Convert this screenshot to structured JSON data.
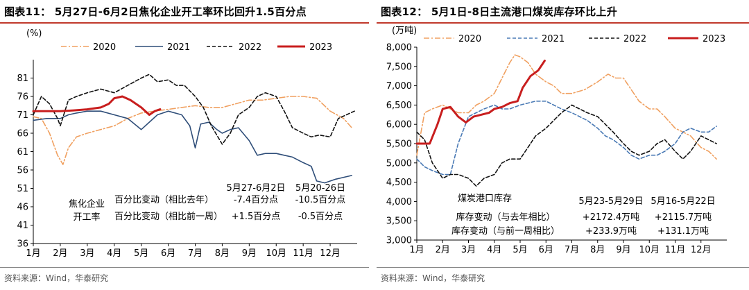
{
  "chart_data": [
    {
      "type": "line",
      "title": "图表11： 5月27日-6月2日焦化企业开工率环比回升1.5百分点",
      "unit": "(%)",
      "ylim": [
        36,
        86
      ],
      "yticks": [
        36,
        41,
        46,
        51,
        56,
        61,
        66,
        71,
        76,
        81
      ],
      "categories": [
        "1月",
        "2月",
        "3月",
        "4月",
        "5月",
        "6月",
        "7月",
        "8月",
        "9月",
        "10月",
        "11月",
        "12月"
      ],
      "series": [
        {
          "name": "2020",
          "color": "#f0a060",
          "style": "dashdot",
          "width": 1.6,
          "points": [
            [
              1,
              70.5
            ],
            [
              1.3,
              70
            ],
            [
              1.6,
              66
            ],
            [
              1.9,
              60
            ],
            [
              2.1,
              57.5
            ],
            [
              2.3,
              62
            ],
            [
              2.6,
              65
            ],
            [
              3,
              66
            ],
            [
              3.5,
              67
            ],
            [
              4,
              68
            ],
            [
              4.5,
              70
            ],
            [
              5,
              71.5
            ],
            [
              5.5,
              72
            ],
            [
              6,
              72.5
            ],
            [
              6.5,
              73
            ],
            [
              7,
              73.5
            ],
            [
              7.5,
              73
            ],
            [
              8,
              73
            ],
            [
              8.5,
              74
            ],
            [
              9,
              75
            ],
            [
              9.5,
              75
            ],
            [
              10,
              75.5
            ],
            [
              10.5,
              76
            ],
            [
              11,
              76
            ],
            [
              11.5,
              75.5
            ],
            [
              12,
              72
            ],
            [
              12.5,
              70
            ],
            [
              12.8,
              67.5
            ]
          ]
        },
        {
          "name": "2021",
          "color": "#2f4e79",
          "style": "solid",
          "width": 1.6,
          "points": [
            [
              1,
              69.5
            ],
            [
              1.5,
              70
            ],
            [
              2,
              70
            ],
            [
              2.3,
              71
            ],
            [
              2.6,
              71.5
            ],
            [
              3,
              72
            ],
            [
              3.5,
              72
            ],
            [
              4,
              71
            ],
            [
              4.5,
              70
            ],
            [
              5,
              67
            ],
            [
              5.3,
              69
            ],
            [
              5.6,
              71
            ],
            [
              6,
              72
            ],
            [
              6.5,
              71
            ],
            [
              6.8,
              68
            ],
            [
              7,
              62
            ],
            [
              7.2,
              68.5
            ],
            [
              7.5,
              69
            ],
            [
              7.8,
              67
            ],
            [
              8,
              66
            ],
            [
              8.3,
              67
            ],
            [
              8.6,
              67.5
            ],
            [
              9,
              64
            ],
            [
              9.3,
              60
            ],
            [
              9.6,
              60.5
            ],
            [
              10,
              60.5
            ],
            [
              10.3,
              60
            ],
            [
              10.6,
              59.5
            ],
            [
              11,
              58
            ],
            [
              11.3,
              57
            ],
            [
              11.5,
              53
            ],
            [
              11.8,
              52.5
            ],
            [
              12.2,
              53.5
            ],
            [
              12.5,
              54
            ],
            [
              12.8,
              54.5
            ]
          ]
        },
        {
          "name": "2022",
          "color": "#111111",
          "style": "dashed",
          "width": 1.6,
          "points": [
            [
              1,
              71
            ],
            [
              1.3,
              76
            ],
            [
              1.6,
              74
            ],
            [
              1.9,
              70
            ],
            [
              2,
              68
            ],
            [
              2.3,
              75
            ],
            [
              2.6,
              76
            ],
            [
              3,
              77
            ],
            [
              3.5,
              78
            ],
            [
              4,
              77
            ],
            [
              4.5,
              79
            ],
            [
              5,
              81
            ],
            [
              5.3,
              82
            ],
            [
              5.6,
              80
            ],
            [
              6,
              80.5
            ],
            [
              6.3,
              79
            ],
            [
              6.6,
              79
            ],
            [
              7,
              76
            ],
            [
              7.3,
              73
            ],
            [
              7.6,
              68
            ],
            [
              8,
              63
            ],
            [
              8.3,
              66
            ],
            [
              8.6,
              71
            ],
            [
              9,
              73
            ],
            [
              9.3,
              76
            ],
            [
              9.6,
              77
            ],
            [
              10,
              76
            ],
            [
              10.3,
              72
            ],
            [
              10.6,
              67.5
            ],
            [
              11,
              66
            ],
            [
              11.3,
              65
            ],
            [
              11.6,
              65.5
            ],
            [
              12,
              65
            ],
            [
              12.3,
              70
            ],
            [
              12.6,
              71
            ],
            [
              12.9,
              72
            ]
          ]
        },
        {
          "name": "2023",
          "color": "#c81e1e",
          "style": "solid",
          "width": 3,
          "points": [
            [
              1,
              72
            ],
            [
              1.5,
              72
            ],
            [
              2,
              72
            ],
            [
              2.5,
              72.2
            ],
            [
              3,
              72.5
            ],
            [
              3.5,
              73
            ],
            [
              3.8,
              74
            ],
            [
              4,
              75.5
            ],
            [
              4.3,
              76
            ],
            [
              4.6,
              75
            ],
            [
              5,
              73
            ],
            [
              5.3,
              71
            ],
            [
              5.5,
              72
            ],
            [
              5.7,
              72.5
            ]
          ]
        }
      ],
      "legend": [
        "2020",
        "2021",
        "2022",
        "2023"
      ],
      "annotations": {
        "row_label_1": "焦化企业",
        "row_label_2": "开工率",
        "col_a": "5月27-6月2日",
        "col_b": "5月20-26日",
        "metric_1": "百分比变动（相比去年）",
        "metric_2": "百分比变动（相比前一周）",
        "a1": "-7.4百分点",
        "a2": "+1.5百分点",
        "b1": "-10.5百分点",
        "b2": "-0.5百分点"
      },
      "source": "资料来源：Wind，华泰研究"
    },
    {
      "type": "line",
      "title": "图表12： 5月1日-8日主流港口煤炭库存环比上升",
      "unit": "(万吨)",
      "ylim": [
        3000,
        8000
      ],
      "yticks": [
        3000,
        3500,
        4000,
        4500,
        5000,
        5500,
        6000,
        6500,
        7000,
        7500,
        8000
      ],
      "categories": [
        "1月",
        "2月",
        "3月",
        "4月",
        "5月",
        "6月",
        "7月",
        "8月",
        "9月",
        "10月",
        "11月",
        "12月"
      ],
      "series": [
        {
          "name": "2020",
          "color": "#f0a060",
          "style": "dashdot",
          "width": 1.6,
          "points": [
            [
              1,
              5200
            ],
            [
              1.3,
              6300
            ],
            [
              1.6,
              6400
            ],
            [
              2,
              6500
            ],
            [
              2.3,
              6400
            ],
            [
              2.6,
              6300
            ],
            [
              3,
              6300
            ],
            [
              3.3,
              6500
            ],
            [
              3.6,
              6600
            ],
            [
              4,
              6800
            ],
            [
              4.3,
              7200
            ],
            [
              4.6,
              7600
            ],
            [
              4.8,
              7800
            ],
            [
              5,
              7750
            ],
            [
              5.3,
              7600
            ],
            [
              5.6,
              7300
            ],
            [
              6,
              7100
            ],
            [
              6.3,
              7000
            ],
            [
              6.6,
              6800
            ],
            [
              7,
              6800
            ],
            [
              7.5,
              6900
            ],
            [
              8,
              7100
            ],
            [
              8.4,
              7300
            ],
            [
              8.7,
              7200
            ],
            [
              9,
              7200
            ],
            [
              9.3,
              6900
            ],
            [
              9.6,
              6600
            ],
            [
              10,
              6400
            ],
            [
              10.3,
              6400
            ],
            [
              10.6,
              6200
            ],
            [
              11,
              5900
            ],
            [
              11.3,
              5800
            ],
            [
              11.6,
              5700
            ],
            [
              12,
              5400
            ],
            [
              12.3,
              5300
            ],
            [
              12.6,
              5100
            ]
          ]
        },
        {
          "name": "2021",
          "color": "#4a7ab5",
          "style": "dashed",
          "width": 1.6,
          "points": [
            [
              1,
              5100
            ],
            [
              1.3,
              4900
            ],
            [
              1.6,
              4800
            ],
            [
              2,
              4700
            ],
            [
              2.3,
              4700
            ],
            [
              2.6,
              5500
            ],
            [
              3,
              6200
            ],
            [
              3.3,
              6300
            ],
            [
              3.6,
              6400
            ],
            [
              4,
              6500
            ],
            [
              4.3,
              6400
            ],
            [
              4.6,
              6400
            ],
            [
              5,
              6500
            ],
            [
              5.3,
              6550
            ],
            [
              5.6,
              6600
            ],
            [
              6,
              6600
            ],
            [
              6.3,
              6500
            ],
            [
              6.6,
              6400
            ],
            [
              7,
              6300
            ],
            [
              7.3,
              6200
            ],
            [
              7.6,
              6100
            ],
            [
              8,
              5900
            ],
            [
              8.3,
              5700
            ],
            [
              8.6,
              5600
            ],
            [
              9,
              5400
            ],
            [
              9.3,
              5200
            ],
            [
              9.6,
              5100
            ],
            [
              10,
              5200
            ],
            [
              10.3,
              5200
            ],
            [
              10.6,
              5300
            ],
            [
              11,
              5500
            ],
            [
              11.3,
              5800
            ],
            [
              11.6,
              5900
            ],
            [
              12,
              5800
            ],
            [
              12.3,
              5800
            ],
            [
              12.6,
              5950
            ]
          ]
        },
        {
          "name": "2022",
          "color": "#111111",
          "style": "dashed",
          "width": 1.6,
          "points": [
            [
              1,
              5800
            ],
            [
              1.3,
              5600
            ],
            [
              1.6,
              5000
            ],
            [
              2,
              4600
            ],
            [
              2.3,
              4700
            ],
            [
              2.6,
              4700
            ],
            [
              3,
              4600
            ],
            [
              3.3,
              4400
            ],
            [
              3.6,
              4600
            ],
            [
              4,
              4700
            ],
            [
              4.3,
              5000
            ],
            [
              4.6,
              5100
            ],
            [
              5,
              5100
            ],
            [
              5.3,
              5400
            ],
            [
              5.6,
              5700
            ],
            [
              6,
              5900
            ],
            [
              6.3,
              6100
            ],
            [
              6.6,
              6300
            ],
            [
              7,
              6500
            ],
            [
              7.3,
              6400
            ],
            [
              7.6,
              6300
            ],
            [
              8,
              6200
            ],
            [
              8.3,
              6000
            ],
            [
              8.6,
              5800
            ],
            [
              9,
              5500
            ],
            [
              9.3,
              5300
            ],
            [
              9.6,
              5200
            ],
            [
              10,
              5300
            ],
            [
              10.3,
              5500
            ],
            [
              10.6,
              5600
            ],
            [
              11,
              5300
            ],
            [
              11.3,
              5100
            ],
            [
              11.6,
              5300
            ],
            [
              12,
              5700
            ],
            [
              12.3,
              5600
            ],
            [
              12.6,
              5500
            ]
          ]
        },
        {
          "name": "2023",
          "color": "#c81e1e",
          "style": "solid",
          "width": 3,
          "points": [
            [
              1,
              5500
            ],
            [
              1.5,
              5500
            ],
            [
              1.8,
              6000
            ],
            [
              2,
              6400
            ],
            [
              2.3,
              6450
            ],
            [
              2.6,
              6200
            ],
            [
              2.9,
              6050
            ],
            [
              3.2,
              6200
            ],
            [
              3.5,
              6250
            ],
            [
              3.8,
              6300
            ],
            [
              4,
              6400
            ],
            [
              4.3,
              6450
            ],
            [
              4.6,
              6550
            ],
            [
              4.9,
              6600
            ],
            [
              5.1,
              6950
            ],
            [
              5.4,
              7250
            ],
            [
              5.7,
              7400
            ],
            [
              5.95,
              7650
            ]
          ]
        }
      ],
      "legend": [
        "2020",
        "2021",
        "2022",
        "2023"
      ],
      "annotations": {
        "row_label_1": "煤炭港口库存",
        "col_a": "5月23-5月29日",
        "col_b": "5月16-5月22日",
        "metric_1": "库存变动（与去年相比）",
        "metric_2": "库存变动（与前一周相比）",
        "a1": "+2172.4万吨",
        "a2": "+233.9万吨",
        "b1": "+2115.7万吨",
        "b2": "+131.1万吨"
      },
      "source": "资料来源：Wind，华泰研究"
    }
  ]
}
